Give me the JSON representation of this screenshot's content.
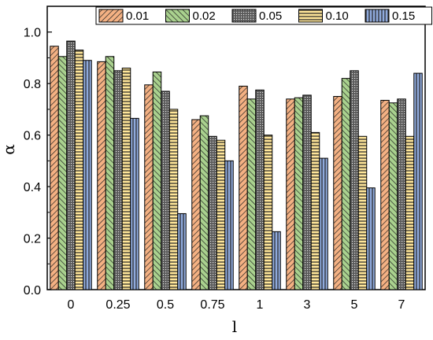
{
  "chart_data": {
    "type": "bar",
    "title": "",
    "xlabel": "l",
    "ylabel": "α",
    "categories": [
      "0",
      "0.25",
      "0.5",
      "0.75",
      "1",
      "3",
      "5",
      "7"
    ],
    "ylim": [
      0,
      1.1
    ],
    "yticks": [
      "0.0",
      "0.2",
      "0.4",
      "0.6",
      "0.8",
      "1.0"
    ],
    "grid": false,
    "legend_position": "top",
    "series": [
      {
        "name": "0.01",
        "color": "#f4b183",
        "pattern": "diagonal-hatch",
        "values": [
          0.945,
          0.885,
          0.795,
          0.66,
          0.79,
          0.74,
          0.75,
          0.735
        ]
      },
      {
        "name": "0.02",
        "color": "#a9d18e",
        "pattern": "reverse-diagonal-hatch",
        "values": [
          0.905,
          0.905,
          0.845,
          0.675,
          0.74,
          0.745,
          0.82,
          0.725
        ]
      },
      {
        "name": "0.05",
        "color": "#595959",
        "pattern": "dots",
        "values": [
          0.965,
          0.85,
          0.77,
          0.595,
          0.775,
          0.755,
          0.85,
          0.74
        ]
      },
      {
        "name": "0.10",
        "color": "#ffe699",
        "pattern": "horizontal-lines",
        "values": [
          0.93,
          0.86,
          0.7,
          0.58,
          0.6,
          0.61,
          0.595,
          0.595
        ]
      },
      {
        "name": "0.15",
        "color": "#8faadc",
        "pattern": "vertical-lines",
        "values": [
          0.89,
          0.665,
          0.295,
          0.5,
          0.225,
          0.51,
          0.395,
          0.84
        ]
      }
    ]
  }
}
